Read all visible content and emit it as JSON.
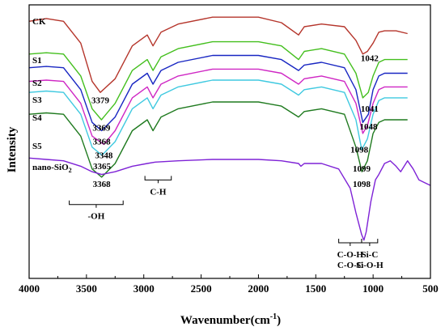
{
  "chart_data": {
    "type": "line",
    "xlabel": "Wavenumber(cm-1)",
    "xlabel_parts": {
      "main": "Wavenumber(cm",
      "sup": "-1",
      "close": ")"
    },
    "ylabel": "Intensity",
    "xlim": [
      4000,
      500
    ],
    "xticks": [
      4000,
      3500,
      3000,
      2500,
      2000,
      1500,
      1000,
      500
    ],
    "yticks_shown": false,
    "grid": false,
    "series": [
      {
        "name": "CK",
        "color": "#b5352b",
        "points": [
          [
            4000,
            0.94
          ],
          [
            3850,
            0.95
          ],
          [
            3700,
            0.94
          ],
          [
            3550,
            0.86
          ],
          [
            3450,
            0.72
          ],
          [
            3379,
            0.68
          ],
          [
            3250,
            0.73
          ],
          [
            3100,
            0.85
          ],
          [
            2970,
            0.89
          ],
          [
            2920,
            0.85
          ],
          [
            2850,
            0.9
          ],
          [
            2700,
            0.93
          ],
          [
            2400,
            0.955
          ],
          [
            2000,
            0.955
          ],
          [
            1800,
            0.935
          ],
          [
            1650,
            0.89
          ],
          [
            1600,
            0.92
          ],
          [
            1450,
            0.93
          ],
          [
            1250,
            0.92
          ],
          [
            1150,
            0.87
          ],
          [
            1090,
            0.82
          ],
          [
            1050,
            0.83
          ],
          [
            1000,
            0.86
          ],
          [
            950,
            0.9
          ],
          [
            900,
            0.905
          ],
          [
            800,
            0.905
          ],
          [
            700,
            0.895
          ]
        ]
      },
      {
        "name": "S1",
        "color": "#44bf1e",
        "points": [
          [
            4000,
            0.82
          ],
          [
            3850,
            0.825
          ],
          [
            3700,
            0.82
          ],
          [
            3550,
            0.74
          ],
          [
            3450,
            0.62
          ],
          [
            3369,
            0.58
          ],
          [
            3250,
            0.64
          ],
          [
            3100,
            0.76
          ],
          [
            2970,
            0.8
          ],
          [
            2920,
            0.76
          ],
          [
            2850,
            0.81
          ],
          [
            2700,
            0.84
          ],
          [
            2400,
            0.865
          ],
          [
            2000,
            0.865
          ],
          [
            1800,
            0.85
          ],
          [
            1650,
            0.8
          ],
          [
            1600,
            0.83
          ],
          [
            1450,
            0.84
          ],
          [
            1250,
            0.82
          ],
          [
            1150,
            0.75
          ],
          [
            1090,
            0.66
          ],
          [
            1042,
            0.68
          ],
          [
            1000,
            0.74
          ],
          [
            950,
            0.79
          ],
          [
            900,
            0.8
          ],
          [
            800,
            0.8
          ],
          [
            700,
            0.8
          ]
        ]
      },
      {
        "name": "S2",
        "color": "#1826c2",
        "points": [
          [
            4000,
            0.77
          ],
          [
            3850,
            0.775
          ],
          [
            3700,
            0.77
          ],
          [
            3550,
            0.69
          ],
          [
            3450,
            0.57
          ],
          [
            3368,
            0.54
          ],
          [
            3250,
            0.59
          ],
          [
            3100,
            0.71
          ],
          [
            2970,
            0.75
          ],
          [
            2920,
            0.71
          ],
          [
            2850,
            0.76
          ],
          [
            2700,
            0.79
          ],
          [
            2400,
            0.815
          ],
          [
            2000,
            0.815
          ],
          [
            1800,
            0.8
          ],
          [
            1650,
            0.76
          ],
          [
            1600,
            0.78
          ],
          [
            1450,
            0.79
          ],
          [
            1250,
            0.77
          ],
          [
            1150,
            0.69
          ],
          [
            1090,
            0.57
          ],
          [
            1041,
            0.6
          ],
          [
            1000,
            0.69
          ],
          [
            950,
            0.74
          ],
          [
            900,
            0.75
          ],
          [
            800,
            0.75
          ],
          [
            700,
            0.75
          ]
        ]
      },
      {
        "name": "S3",
        "color": "#cf27c4",
        "points": [
          [
            4000,
            0.72
          ],
          [
            3850,
            0.725
          ],
          [
            3700,
            0.72
          ],
          [
            3550,
            0.64
          ],
          [
            3450,
            0.52
          ],
          [
            3348,
            0.49
          ],
          [
            3250,
            0.54
          ],
          [
            3100,
            0.66
          ],
          [
            2970,
            0.7
          ],
          [
            2920,
            0.66
          ],
          [
            2850,
            0.71
          ],
          [
            2700,
            0.74
          ],
          [
            2400,
            0.765
          ],
          [
            2000,
            0.765
          ],
          [
            1800,
            0.75
          ],
          [
            1650,
            0.71
          ],
          [
            1600,
            0.73
          ],
          [
            1450,
            0.74
          ],
          [
            1250,
            0.72
          ],
          [
            1150,
            0.64
          ],
          [
            1090,
            0.53
          ],
          [
            1048,
            0.56
          ],
          [
            1000,
            0.64
          ],
          [
            950,
            0.69
          ],
          [
            900,
            0.7
          ],
          [
            800,
            0.7
          ],
          [
            700,
            0.7
          ]
        ]
      },
      {
        "name": "S4",
        "color": "#3fc9e0",
        "points": [
          [
            4000,
            0.68
          ],
          [
            3850,
            0.685
          ],
          [
            3700,
            0.68
          ],
          [
            3550,
            0.6
          ],
          [
            3450,
            0.48
          ],
          [
            3365,
            0.45
          ],
          [
            3250,
            0.5
          ],
          [
            3100,
            0.62
          ],
          [
            2970,
            0.66
          ],
          [
            2920,
            0.62
          ],
          [
            2850,
            0.67
          ],
          [
            2700,
            0.7
          ],
          [
            2400,
            0.725
          ],
          [
            2000,
            0.725
          ],
          [
            1800,
            0.71
          ],
          [
            1650,
            0.67
          ],
          [
            1600,
            0.69
          ],
          [
            1450,
            0.7
          ],
          [
            1250,
            0.68
          ],
          [
            1150,
            0.58
          ],
          [
            1099,
            0.47
          ],
          [
            1050,
            0.51
          ],
          [
            1000,
            0.6
          ],
          [
            950,
            0.65
          ],
          [
            900,
            0.66
          ],
          [
            800,
            0.66
          ],
          [
            700,
            0.66
          ]
        ]
      },
      {
        "name": "S5",
        "color": "#1f7a1f",
        "points": [
          [
            4000,
            0.6
          ],
          [
            3850,
            0.605
          ],
          [
            3700,
            0.6
          ],
          [
            3550,
            0.52
          ],
          [
            3450,
            0.4
          ],
          [
            3368,
            0.37
          ],
          [
            3250,
            0.42
          ],
          [
            3100,
            0.54
          ],
          [
            2970,
            0.58
          ],
          [
            2920,
            0.54
          ],
          [
            2850,
            0.59
          ],
          [
            2700,
            0.62
          ],
          [
            2400,
            0.645
          ],
          [
            2000,
            0.645
          ],
          [
            1800,
            0.63
          ],
          [
            1650,
            0.59
          ],
          [
            1600,
            0.61
          ],
          [
            1450,
            0.62
          ],
          [
            1250,
            0.6
          ],
          [
            1150,
            0.48
          ],
          [
            1098,
            0.39
          ],
          [
            1050,
            0.43
          ],
          [
            1000,
            0.53
          ],
          [
            950,
            0.57
          ],
          [
            900,
            0.58
          ],
          [
            800,
            0.58
          ],
          [
            700,
            0.58
          ]
        ]
      },
      {
        "name": "nano-SiO2",
        "color": "#7e22d6",
        "points": [
          [
            4000,
            0.44
          ],
          [
            3850,
            0.435
          ],
          [
            3700,
            0.43
          ],
          [
            3550,
            0.41
          ],
          [
            3450,
            0.39
          ],
          [
            3368,
            0.38
          ],
          [
            3250,
            0.39
          ],
          [
            3100,
            0.41
          ],
          [
            2970,
            0.42
          ],
          [
            2900,
            0.425
          ],
          [
            2700,
            0.43
          ],
          [
            2400,
            0.435
          ],
          [
            2000,
            0.435
          ],
          [
            1800,
            0.43
          ],
          [
            1650,
            0.42
          ],
          [
            1630,
            0.41
          ],
          [
            1600,
            0.42
          ],
          [
            1450,
            0.42
          ],
          [
            1300,
            0.4
          ],
          [
            1200,
            0.33
          ],
          [
            1150,
            0.24
          ],
          [
            1100,
            0.16
          ],
          [
            1080,
            0.14
          ],
          [
            1060,
            0.17
          ],
          [
            1020,
            0.28
          ],
          [
            980,
            0.36
          ],
          [
            950,
            0.38
          ],
          [
            900,
            0.42
          ],
          [
            850,
            0.43
          ],
          [
            800,
            0.41
          ],
          [
            760,
            0.39
          ],
          [
            700,
            0.43
          ],
          [
            650,
            0.4
          ],
          [
            600,
            0.36
          ],
          [
            550,
            0.35
          ],
          [
            500,
            0.34
          ]
        ]
      }
    ],
    "series_labels": [
      "CK",
      "S1",
      "S2",
      "S3",
      "S4",
      "S5",
      "nano-SiO2"
    ],
    "peak_annotations": [
      {
        "text": "3379",
        "x": 3379,
        "y": 0.64
      },
      {
        "text": "3369",
        "x": 3369,
        "y": 0.54
      },
      {
        "text": "3368",
        "x": 3368,
        "y": 0.49
      },
      {
        "text": "3348",
        "x": 3348,
        "y": 0.44
      },
      {
        "text": "3365",
        "x": 3365,
        "y": 0.4
      },
      {
        "text": "3368",
        "x": 3368,
        "y": 0.335
      },
      {
        "text": "1042",
        "x": 1030,
        "y": 0.795
      },
      {
        "text": "1041",
        "x": 1030,
        "y": 0.61
      },
      {
        "text": "1048",
        "x": 1040,
        "y": 0.545
      },
      {
        "text": "1098",
        "x": 1120,
        "y": 0.46
      },
      {
        "text": "1099",
        "x": 1100,
        "y": 0.39
      },
      {
        "text": "1098",
        "x": 1100,
        "y": 0.335
      }
    ],
    "group_annotations": [
      {
        "lines": [
          "-OH"
        ],
        "x_from": 3650,
        "x_to": 3180,
        "y": 0.27
      },
      {
        "lines": [
          "C-H"
        ],
        "x_from": 2990,
        "x_to": 2760,
        "y": 0.36
      },
      {
        "lines": [
          "C-O-H",
          "C-O-C"
        ],
        "x_from": 1300,
        "x_to": 1100,
        "y": 0.02
      },
      {
        "lines": [
          "Si-C",
          "Si-O-H"
        ],
        "x_from": 1100,
        "x_to": 960,
        "y": 0.02
      }
    ]
  }
}
